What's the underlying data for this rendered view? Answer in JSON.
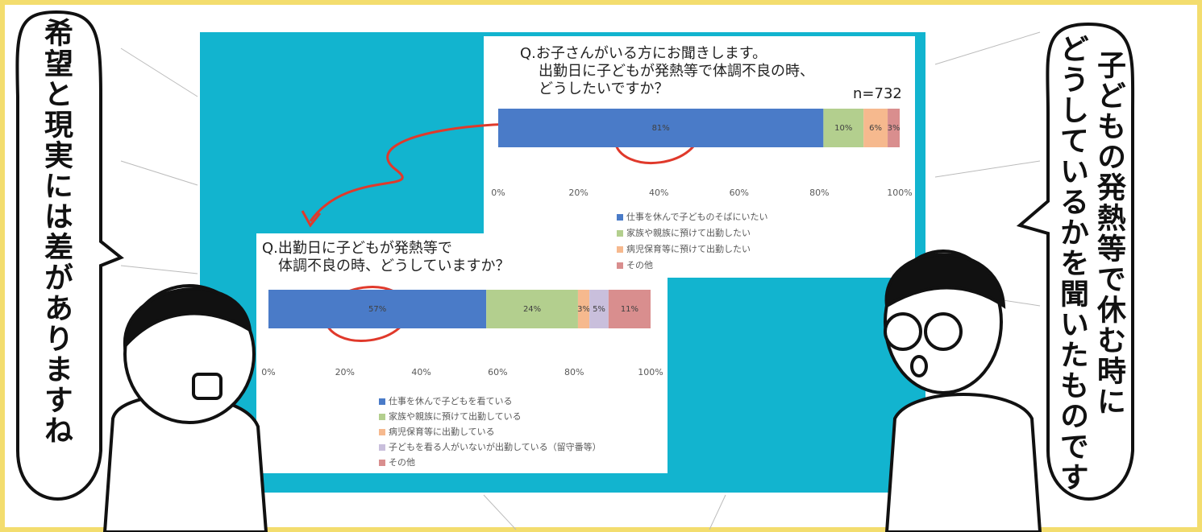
{
  "speech_bubbles": {
    "left": [
      "希望と現実には差がありますね"
    ],
    "right": [
      "子どもの発熱等で休む時に",
      "どうしているかを聞いたものです"
    ]
  },
  "chart_data": [
    {
      "type": "stacked_bar",
      "title": [
        "Q.お子さんがいる方にお聞きします。",
        "出勤日に子どもが発熱等で体調不良の時、",
        "どうしたいですか？"
      ],
      "annotation": "n=732",
      "categories": [
        null
      ],
      "series": [
        {
          "name": "仕事を休んで子どものそばにいたい",
          "color": "#4a7bc8",
          "values": [
            81
          ],
          "value_labels": [
            "81%"
          ]
        },
        {
          "name": "家族や親族に預けて出勤したい",
          "color": "#b3cf8e",
          "values": [
            10
          ],
          "value_labels": [
            "10%"
          ]
        },
        {
          "name": "病児保育等に預けて出勤したい",
          "color": "#f6b98e",
          "values": [
            6
          ],
          "value_labels": [
            "6%"
          ]
        },
        {
          "name": "その他",
          "color": "#d98e8e",
          "values": [
            3
          ],
          "value_labels": [
            "3%"
          ]
        }
      ],
      "xlim": [
        0,
        100
      ],
      "xticks": [
        {
          "value": 0,
          "label": "0%"
        },
        {
          "value": 20,
          "label": "20%"
        },
        {
          "value": 40,
          "label": "40%"
        },
        {
          "value": 60,
          "label": "60%"
        },
        {
          "value": 80,
          "label": "80%"
        },
        {
          "value": 100,
          "label": "100%"
        }
      ]
    },
    {
      "type": "stacked_bar",
      "title": [
        "Q.出勤日に子どもが発熱等で",
        "体調不良の時、どうしていますか？"
      ],
      "categories": [
        null
      ],
      "series": [
        {
          "name": "仕事を休んで子どもを看ている",
          "color": "#4a7bc8",
          "values": [
            57
          ],
          "value_labels": [
            "57%"
          ]
        },
        {
          "name": "家族や親族に預けて出勤している",
          "color": "#b3cf8e",
          "values": [
            24
          ],
          "value_labels": [
            "24%"
          ]
        },
        {
          "name": "病児保育等に出勤している",
          "color": "#f6b98e",
          "values": [
            3
          ],
          "value_labels": [
            "3%"
          ]
        },
        {
          "name": "子どもを看る人がいないが出勤している（留守番等）",
          "color": "#c9bfdc",
          "values": [
            5
          ],
          "value_labels": [
            "5%"
          ]
        },
        {
          "name": "その他",
          "color": "#d98e8e",
          "values": [
            11
          ],
          "value_labels": [
            "11%"
          ]
        }
      ],
      "xlim": [
        0,
        100
      ],
      "xticks": [
        {
          "value": 0,
          "label": "0%"
        },
        {
          "value": 20,
          "label": "20%"
        },
        {
          "value": 40,
          "label": "40%"
        },
        {
          "value": 60,
          "label": "60%"
        },
        {
          "value": 80,
          "label": "80%"
        },
        {
          "value": 100,
          "label": "100%"
        }
      ]
    }
  ]
}
